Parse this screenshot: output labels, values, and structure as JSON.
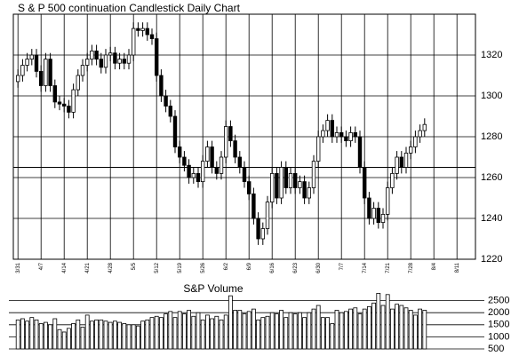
{
  "chart_data": [
    {
      "type": "candlestick",
      "title": "S & P 500 continuation Candlestick Daily Chart",
      "x": [
        0,
        1,
        2,
        3,
        4,
        5,
        6,
        7,
        8,
        9,
        10,
        11,
        12,
        13,
        14,
        15,
        16,
        17,
        18,
        19,
        20,
        21,
        22,
        23,
        24,
        25,
        26,
        27,
        28,
        29,
        30,
        31,
        32,
        33,
        34,
        35,
        36,
        37,
        38,
        39,
        40,
        41,
        42,
        43,
        44,
        45,
        46,
        47,
        48,
        49,
        50,
        51,
        52,
        53,
        54,
        55,
        56,
        57,
        58,
        59,
        60,
        61,
        62,
        63,
        64,
        65,
        66,
        67,
        68,
        69,
        70,
        71,
        72,
        73,
        74,
        75,
        76,
        77,
        78,
        79,
        80,
        81,
        82,
        83,
        84,
        85,
        86,
        87,
        88
      ],
      "open": [
        1307,
        1310,
        1315,
        1318,
        1320,
        1312,
        1305,
        1318,
        1305,
        1297,
        1296,
        1295,
        1292,
        1303,
        1310,
        1315,
        1318,
        1322,
        1318,
        1314,
        1320,
        1321,
        1316,
        1318,
        1316,
        1320,
        1333,
        1332,
        1333,
        1330,
        1328,
        1310,
        1300,
        1295,
        1290,
        1275,
        1270,
        1266,
        1260,
        1262,
        1258,
        1268,
        1275,
        1265,
        1262,
        1270,
        1285,
        1278,
        1270,
        1265,
        1258,
        1252,
        1240,
        1230,
        1235,
        1248,
        1262,
        1250,
        1265,
        1255,
        1262,
        1255,
        1258,
        1250,
        1255,
        1268,
        1280,
        1283,
        1288,
        1280,
        1282,
        1280,
        1278,
        1282,
        1280,
        1265,
        1250,
        1240,
        1245,
        1238,
        1242,
        1255,
        1262,
        1270,
        1265,
        1272,
        1275,
        1280,
        1283
      ],
      "high": [
        1313,
        1318,
        1321,
        1323,
        1323,
        1315,
        1321,
        1321,
        1308,
        1300,
        1299,
        1298,
        1306,
        1313,
        1318,
        1321,
        1325,
        1325,
        1321,
        1323,
        1324,
        1324,
        1321,
        1321,
        1323,
        1336,
        1336,
        1336,
        1336,
        1333,
        1331,
        1313,
        1303,
        1298,
        1293,
        1278,
        1273,
        1269,
        1265,
        1265,
        1271,
        1278,
        1278,
        1268,
        1273,
        1288,
        1288,
        1281,
        1273,
        1268,
        1261,
        1255,
        1243,
        1238,
        1251,
        1265,
        1265,
        1268,
        1268,
        1265,
        1265,
        1261,
        1261,
        1258,
        1271,
        1283,
        1286,
        1291,
        1291,
        1285,
        1285,
        1283,
        1285,
        1285,
        1283,
        1268,
        1253,
        1248,
        1248,
        1245,
        1258,
        1265,
        1273,
        1273,
        1275,
        1278,
        1283,
        1286,
        1289
      ],
      "low": [
        1304,
        1307,
        1312,
        1315,
        1309,
        1302,
        1302,
        1302,
        1294,
        1293,
        1292,
        1289,
        1289,
        1300,
        1307,
        1312,
        1315,
        1315,
        1311,
        1311,
        1317,
        1313,
        1313,
        1313,
        1313,
        1317,
        1329,
        1329,
        1327,
        1325,
        1307,
        1297,
        1292,
        1287,
        1272,
        1267,
        1263,
        1257,
        1257,
        1255,
        1255,
        1265,
        1262,
        1259,
        1259,
        1267,
        1275,
        1267,
        1262,
        1255,
        1249,
        1237,
        1227,
        1227,
        1232,
        1245,
        1247,
        1247,
        1252,
        1252,
        1252,
        1252,
        1247,
        1247,
        1252,
        1265,
        1277,
        1280,
        1277,
        1277,
        1277,
        1275,
        1275,
        1277,
        1262,
        1247,
        1237,
        1237,
        1235,
        1235,
        1239,
        1252,
        1259,
        1262,
        1262,
        1269,
        1272,
        1277,
        1280
      ],
      "close": [
        1310,
        1315,
        1318,
        1320,
        1312,
        1305,
        1318,
        1305,
        1297,
        1296,
        1295,
        1292,
        1303,
        1310,
        1315,
        1318,
        1322,
        1318,
        1314,
        1320,
        1321,
        1316,
        1318,
        1316,
        1320,
        1333,
        1332,
        1333,
        1330,
        1328,
        1310,
        1300,
        1295,
        1290,
        1275,
        1270,
        1266,
        1260,
        1262,
        1258,
        1268,
        1275,
        1265,
        1262,
        1270,
        1285,
        1278,
        1270,
        1265,
        1258,
        1252,
        1240,
        1230,
        1235,
        1248,
        1262,
        1250,
        1265,
        1255,
        1262,
        1255,
        1258,
        1250,
        1255,
        1268,
        1280,
        1283,
        1288,
        1280,
        1282,
        1280,
        1278,
        1282,
        1280,
        1265,
        1250,
        1240,
        1245,
        1238,
        1242,
        1255,
        1262,
        1270,
        1265,
        1272,
        1275,
        1280,
        1283,
        1286
      ],
      "hlines": [
        1265
      ],
      "xlim": [
        -1,
        99
      ],
      "xticks": [
        {
          "value": 0,
          "label": "3/31"
        },
        {
          "value": 5,
          "label": "4/7"
        },
        {
          "value": 10,
          "label": "4/14"
        },
        {
          "value": 15,
          "label": "4/21"
        },
        {
          "value": 20,
          "label": "4/28"
        },
        {
          "value": 25,
          "label": "5/5"
        },
        {
          "value": 30,
          "label": "5/12"
        },
        {
          "value": 35,
          "label": "5/19"
        },
        {
          "value": 40,
          "label": "5/26"
        },
        {
          "value": 45,
          "label": "6/2"
        },
        {
          "value": 50,
          "label": "6/9"
        },
        {
          "value": 55,
          "label": "6/16"
        },
        {
          "value": 60,
          "label": "6/23"
        },
        {
          "value": 65,
          "label": "6/30"
        },
        {
          "value": 70,
          "label": "7/7"
        },
        {
          "value": 75,
          "label": "7/14"
        },
        {
          "value": 80,
          "label": "7/21"
        },
        {
          "value": 85,
          "label": "7/28"
        },
        {
          "value": 90,
          "label": "8/4"
        },
        {
          "value": 95,
          "label": "8/11"
        }
      ],
      "ylim": [
        1220,
        1340
      ],
      "yticks": [
        1220,
        1240,
        1260,
        1280,
        1300,
        1320
      ],
      "grid": true
    },
    {
      "type": "bar",
      "title": "S&P Volume",
      "x": [
        0,
        1,
        2,
        3,
        4,
        5,
        6,
        7,
        8,
        9,
        10,
        11,
        12,
        13,
        14,
        15,
        16,
        17,
        18,
        19,
        20,
        21,
        22,
        23,
        24,
        25,
        26,
        27,
        28,
        29,
        30,
        31,
        32,
        33,
        34,
        35,
        36,
        37,
        38,
        39,
        40,
        41,
        42,
        43,
        44,
        45,
        46,
        47,
        48,
        49,
        50,
        51,
        52,
        53,
        54,
        55,
        56,
        57,
        58,
        59,
        60,
        61,
        62,
        63,
        64,
        65,
        66,
        67,
        68,
        69,
        70,
        71,
        72,
        73,
        74,
        75,
        76,
        77,
        78,
        79,
        80,
        81,
        82,
        83,
        84,
        85,
        86,
        87,
        88
      ],
      "values": [
        1700,
        1750,
        1650,
        1800,
        1700,
        1550,
        1600,
        1500,
        1750,
        1300,
        1200,
        1350,
        1550,
        1700,
        1400,
        1900,
        1650,
        1700,
        1700,
        1650,
        1600,
        1650,
        1600,
        1550,
        1500,
        1500,
        1450,
        1650,
        1700,
        1800,
        1850,
        1800,
        1950,
        2050,
        1800,
        2050,
        1950,
        2100,
        1850,
        2000,
        1700,
        1900,
        1750,
        1850,
        1700,
        1900,
        2700,
        2100,
        2100,
        1950,
        2050,
        2150,
        1700,
        1800,
        1850,
        2000,
        1950,
        2100,
        1800,
        2000,
        1950,
        2000,
        1800,
        2000,
        2150,
        2300,
        1800,
        1800,
        1550,
        2100,
        2000,
        2050,
        2150,
        2200,
        1950,
        2150,
        2250,
        2400,
        2800,
        2300,
        2750,
        2150,
        2350,
        2300,
        2200,
        2100,
        1900,
        2150,
        2100
      ],
      "xlim": [
        -1,
        99
      ],
      "ylim": [
        500,
        3000
      ],
      "yticks": [
        500,
        1000,
        1500,
        2000,
        2500
      ],
      "grid": true
    }
  ]
}
